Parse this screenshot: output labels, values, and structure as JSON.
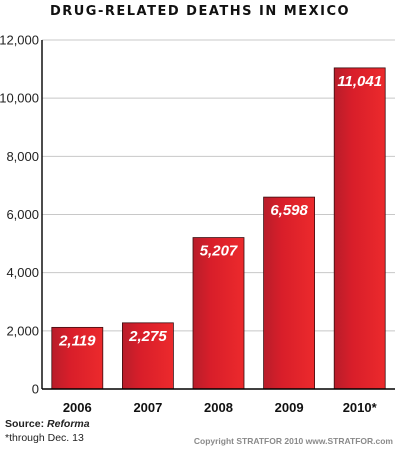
{
  "chart_data": {
    "type": "bar",
    "title": "DRUG-RELATED DEATHS IN MEXICO",
    "categories": [
      "2006",
      "2007",
      "2008",
      "2009",
      "2010*"
    ],
    "values": [
      2119,
      2275,
      5207,
      6598,
      11041
    ],
    "value_labels": [
      "2,119",
      "2,275",
      "5,207",
      "6,598",
      "11,041"
    ],
    "yticks": [
      0,
      2000,
      4000,
      6000,
      8000,
      10000,
      12000
    ],
    "ytick_labels": [
      "0",
      "2,000",
      "4,000",
      "6,000",
      "8,000",
      "10,000",
      "12,000"
    ],
    "ylim": [
      0,
      12000
    ],
    "grid": true,
    "bar_color": "#d81e2a",
    "xlabel": "",
    "ylabel": ""
  },
  "footer": {
    "source_prefix": "Source: ",
    "source_name": "Reforma",
    "note": "*through Dec. 13",
    "copyright": "Copyright STRATFOR 2010   www.STRATFOR.com"
  }
}
